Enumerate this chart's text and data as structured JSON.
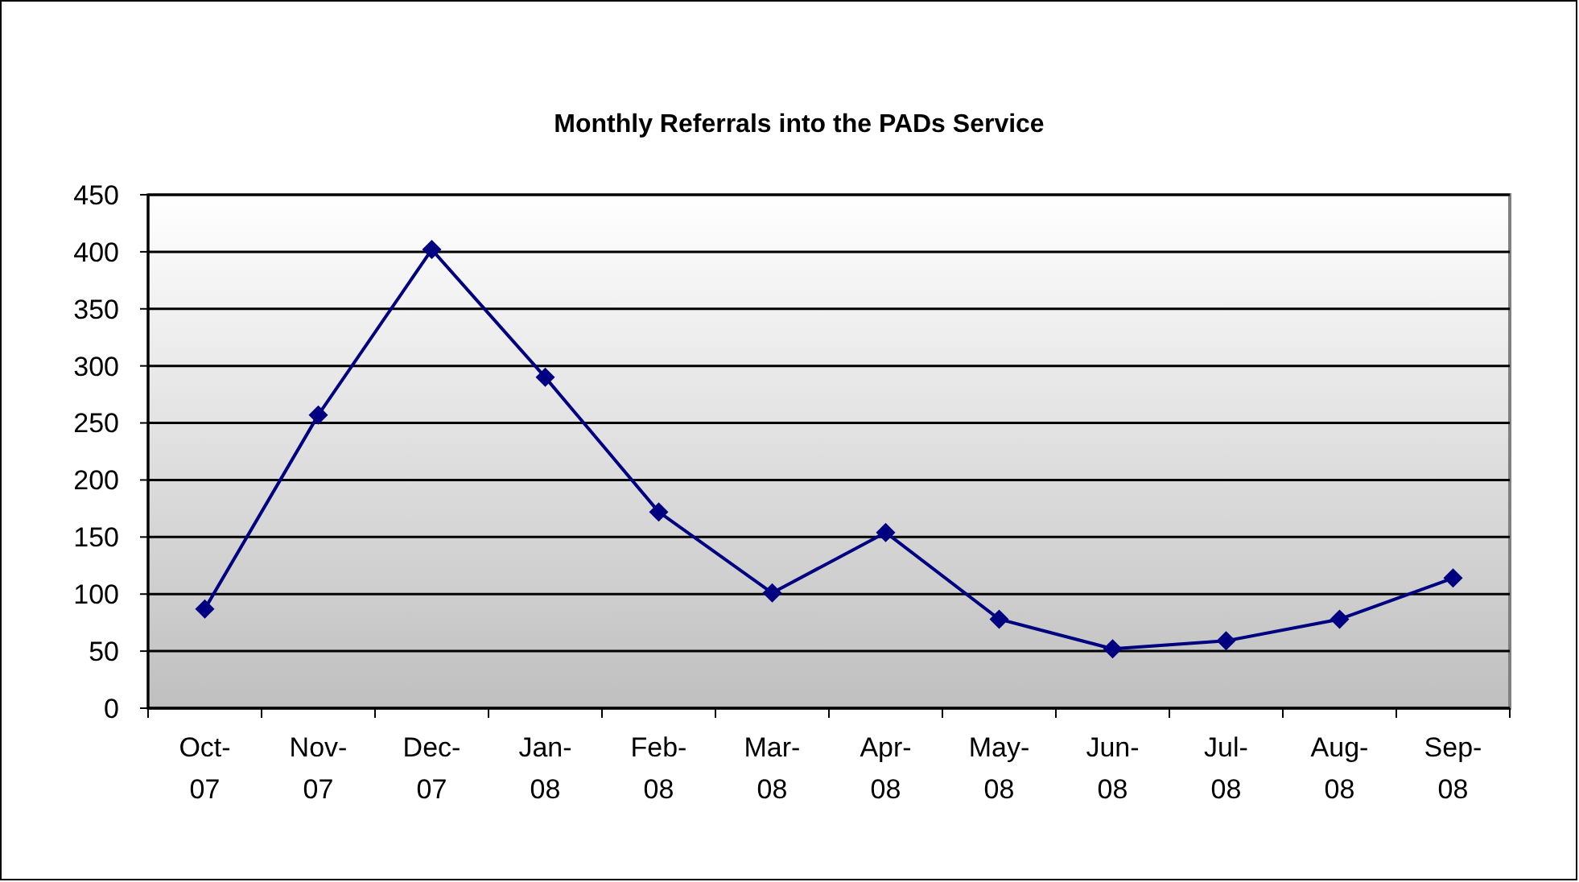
{
  "chart_data": {
    "type": "line",
    "title": "Monthly Referrals into the PADs Service",
    "categories": [
      "Oct-07",
      "Nov-07",
      "Dec-07",
      "Jan-08",
      "Feb-08",
      "Mar-08",
      "Apr-08",
      "May-08",
      "Jun-08",
      "Jul-08",
      "Aug-08",
      "Sep-08"
    ],
    "series": [
      {
        "color": "#000080",
        "values": [
          87,
          257,
          402,
          290,
          172,
          101,
          154,
          78,
          52,
          59,
          78,
          114
        ]
      }
    ],
    "ylim": [
      0,
      450
    ],
    "yticks": [
      0,
      50,
      100,
      150,
      200,
      250,
      300,
      350,
      400,
      450
    ],
    "grid": "y",
    "marker": "diamond",
    "line_style": "solid"
  }
}
